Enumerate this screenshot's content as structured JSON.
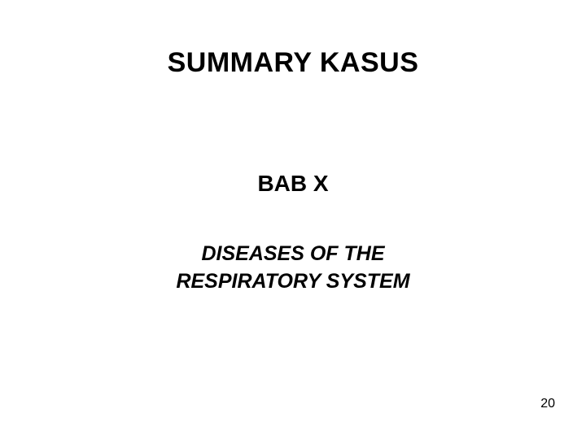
{
  "slide": {
    "title": "SUMMARY  KASUS",
    "chapter": "BAB  X",
    "subtitle_line1": "DISEASES OF THE",
    "subtitle_line2": "RESPIRATORY  SYSTEM",
    "page_number": "20"
  },
  "styling": {
    "background_color": "#ffffff",
    "text_color": "#000000",
    "title_fontsize": 34,
    "title_weight": "bold",
    "chapter_fontsize": 28,
    "chapter_weight": "bold",
    "subtitle_fontsize": 25,
    "subtitle_weight": "bold",
    "subtitle_style": "italic",
    "pagenum_fontsize": 16,
    "font_family": "Arial"
  }
}
